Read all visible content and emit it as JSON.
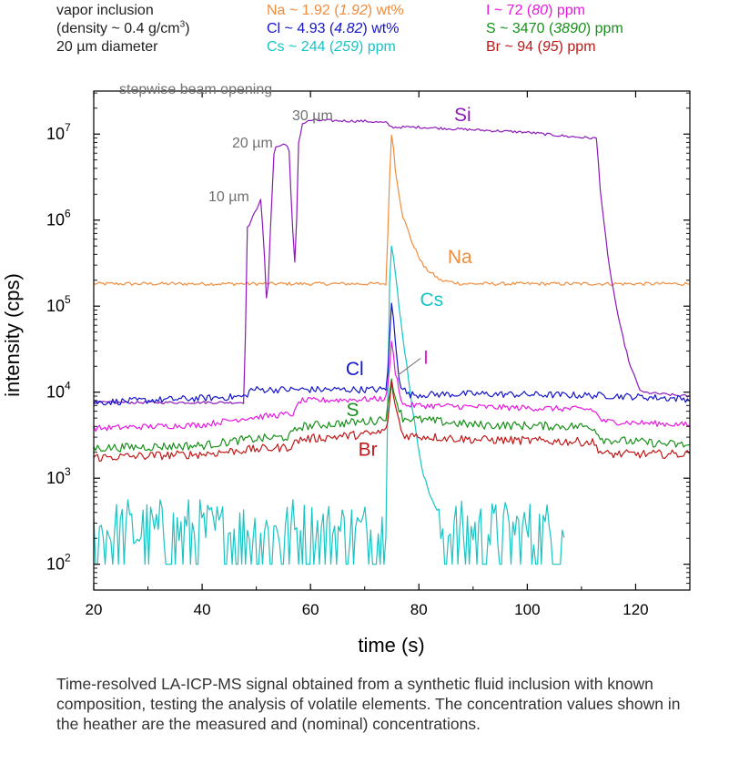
{
  "header": {
    "sample_line1": "vapor inclusion",
    "sample_line2_pre": "(density ~ 0.4 g/cm",
    "sample_line2_sup": "3",
    "sample_line2_post": ")",
    "sample_line3": "20 µm diameter",
    "na": {
      "label": "Na ~ 1.92",
      "nominal": "1.92",
      "unit": "wt%",
      "color": "#f08c3c"
    },
    "cl": {
      "label": "Cl ~ 4.93",
      "nominal": "4.82",
      "unit": "wt%",
      "color": "#1515c8"
    },
    "cs": {
      "label": "Cs ~ 244",
      "nominal": "259",
      "unit": "ppm",
      "color": "#18c4c4"
    },
    "i": {
      "label": "I ~ 72",
      "nominal": "80",
      "unit": "ppm",
      "color": "#e818e0"
    },
    "s": {
      "label": "S ~ 3470",
      "nominal": "3890",
      "unit": "ppm",
      "color": "#18901a"
    },
    "br": {
      "label": "Br ~ 94",
      "nominal": "95",
      "unit": "ppm",
      "color": "#c01818"
    }
  },
  "annotations": {
    "beam": "stepwise beam opening",
    "d10": "10 µm",
    "d20": "20 µm",
    "d30": "30 µm"
  },
  "chart_data": {
    "type": "line",
    "title": "",
    "xlabel": "time (s)",
    "ylabel": "intensity (cps)",
    "xlim": [
      20,
      130
    ],
    "ylim_log10": [
      1.7,
      7.5
    ],
    "yscale": "log",
    "x_ticks": [
      "20",
      "40",
      "60",
      "80",
      "100",
      "120"
    ],
    "y_ticks": [
      {
        "base": "10",
        "exp": "2",
        "log": 2
      },
      {
        "base": "10",
        "exp": "3",
        "log": 3
      },
      {
        "base": "10",
        "exp": "4",
        "log": 4
      },
      {
        "base": "10",
        "exp": "5",
        "log": 5
      },
      {
        "base": "10",
        "exp": "6",
        "log": 6
      },
      {
        "base": "10",
        "exp": "7",
        "log": 7
      }
    ],
    "series": [
      {
        "name": "Na",
        "label": "Na",
        "color": "#f08c3c",
        "noise": 0.02,
        "points": [
          [
            20,
            5.26
          ],
          [
            74.0,
            5.26
          ],
          [
            74.6,
            6.5
          ],
          [
            75.0,
            7.08
          ],
          [
            75.6,
            6.6
          ],
          [
            77,
            6.05
          ],
          [
            79,
            5.7
          ],
          [
            81,
            5.45
          ],
          [
            84,
            5.3
          ],
          [
            88,
            5.26
          ],
          [
            130,
            5.26
          ]
        ]
      },
      {
        "name": "Si",
        "label": "Si",
        "color": "#8c18b8",
        "noise": 0.015,
        "points": [
          [
            20,
            3.88
          ],
          [
            47.8,
            3.88
          ],
          [
            48.3,
            5.9
          ],
          [
            50,
            6.12
          ],
          [
            50.8,
            6.25
          ],
          [
            51.4,
            5.7
          ],
          [
            52.0,
            4.9
          ],
          [
            52.6,
            5.9
          ],
          [
            53.3,
            6.84
          ],
          [
            55,
            6.88
          ],
          [
            56,
            6.87
          ],
          [
            56.6,
            6.0
          ],
          [
            57.2,
            5.4
          ],
          [
            57.8,
            6.9
          ],
          [
            58.5,
            7.12
          ],
          [
            60,
            7.16
          ],
          [
            70,
            7.15
          ],
          [
            74,
            7.13
          ],
          [
            75,
            7.08
          ],
          [
            80,
            7.08
          ],
          [
            90,
            7.05
          ],
          [
            100,
            7.02
          ],
          [
            108,
            6.97
          ],
          [
            112.8,
            6.95
          ],
          [
            113.4,
            6.4
          ],
          [
            115,
            5.5
          ],
          [
            117,
            4.8
          ],
          [
            119,
            4.3
          ],
          [
            121,
            4.0
          ],
          [
            130,
            3.95
          ]
        ]
      },
      {
        "name": "Cs",
        "label": "Cs",
        "color": "#18c4c4",
        "noise": 0.03,
        "points": [
          [
            20,
            1.9
          ],
          [
            73.8,
            1.9
          ],
          [
            74.2,
            3.7
          ],
          [
            74.6,
            5.3
          ],
          [
            75.0,
            5.75
          ],
          [
            75.6,
            5.4
          ],
          [
            76.5,
            4.9
          ],
          [
            78,
            4.2
          ],
          [
            79.5,
            3.5
          ],
          [
            81,
            3.0
          ],
          [
            83,
            2.65
          ],
          [
            86,
            2.5
          ],
          [
            90,
            2.5
          ],
          [
            100,
            2.48
          ],
          [
            105,
            2.46
          ],
          [
            107,
            2.45
          ]
        ]
      },
      {
        "name": "Cl",
        "label": "Cl",
        "color": "#1515c8",
        "noise": 0.04,
        "points": [
          [
            20,
            3.88
          ],
          [
            40,
            3.93
          ],
          [
            48,
            3.95
          ],
          [
            49,
            4.03
          ],
          [
            72,
            4.03
          ],
          [
            74,
            4.03
          ],
          [
            74.6,
            4.6
          ],
          [
            75.0,
            5.1
          ],
          [
            75.6,
            4.6
          ],
          [
            76.5,
            4.1
          ],
          [
            78,
            3.97
          ],
          [
            90,
            3.98
          ],
          [
            115,
            3.96
          ],
          [
            130,
            3.92
          ]
        ]
      },
      {
        "name": "I",
        "label": "I",
        "color": "#e818e0",
        "noise": 0.035,
        "points": [
          [
            20,
            3.58
          ],
          [
            40,
            3.62
          ],
          [
            48,
            3.7
          ],
          [
            57,
            3.75
          ],
          [
            58,
            3.9
          ],
          [
            72,
            3.92
          ],
          [
            74,
            3.93
          ],
          [
            74.6,
            4.3
          ],
          [
            75.0,
            4.6
          ],
          [
            75.6,
            4.25
          ],
          [
            77,
            3.85
          ],
          [
            90,
            3.83
          ],
          [
            112,
            3.8
          ],
          [
            114,
            3.66
          ],
          [
            130,
            3.62
          ]
        ]
      },
      {
        "name": "S",
        "label": "S",
        "color": "#18901a",
        "noise": 0.05,
        "points": [
          [
            20,
            3.35
          ],
          [
            40,
            3.38
          ],
          [
            48,
            3.45
          ],
          [
            56,
            3.48
          ],
          [
            58,
            3.6
          ],
          [
            72,
            3.67
          ],
          [
            74,
            3.72
          ],
          [
            74.6,
            3.95
          ],
          [
            75.0,
            4.18
          ],
          [
            75.6,
            3.95
          ],
          [
            77,
            3.7
          ],
          [
            90,
            3.62
          ],
          [
            112,
            3.6
          ],
          [
            114,
            3.45
          ],
          [
            130,
            3.38
          ]
        ]
      },
      {
        "name": "Br",
        "label": "Br",
        "color": "#c01818",
        "noise": 0.05,
        "points": [
          [
            20,
            3.24
          ],
          [
            40,
            3.28
          ],
          [
            48,
            3.33
          ],
          [
            56,
            3.36
          ],
          [
            58,
            3.45
          ],
          [
            72,
            3.52
          ],
          [
            74,
            3.56
          ],
          [
            74.6,
            3.85
          ],
          [
            75.0,
            4.12
          ],
          [
            75.6,
            3.85
          ],
          [
            77,
            3.5
          ],
          [
            90,
            3.45
          ],
          [
            112,
            3.42
          ],
          [
            114,
            3.28
          ],
          [
            130,
            3.28
          ]
        ]
      }
    ],
    "series_labels": [
      {
        "name": "Si",
        "x": 86.5,
        "y_log": 7.15
      },
      {
        "name": "Na",
        "x": 85.3,
        "y_log": 5.5
      },
      {
        "name": "Cs",
        "x": 80.2,
        "y_log": 5.0
      },
      {
        "name": "Cl",
        "x": 66.5,
        "y_log": 4.2
      },
      {
        "name": "I",
        "x": 80.8,
        "y_log": 4.33
      },
      {
        "name": "S",
        "x": 66.6,
        "y_log": 3.72
      },
      {
        "name": "Br",
        "x": 68.8,
        "y_log": 3.26
      }
    ],
    "grid": false
  },
  "caption": "Time-resolved LA-ICP-MS signal obtained from a synthetic fluid inclusion with known composition, testing the analysis of volatile elements. The concentration values shown in the heather are the measured and (nominal) concentrations."
}
